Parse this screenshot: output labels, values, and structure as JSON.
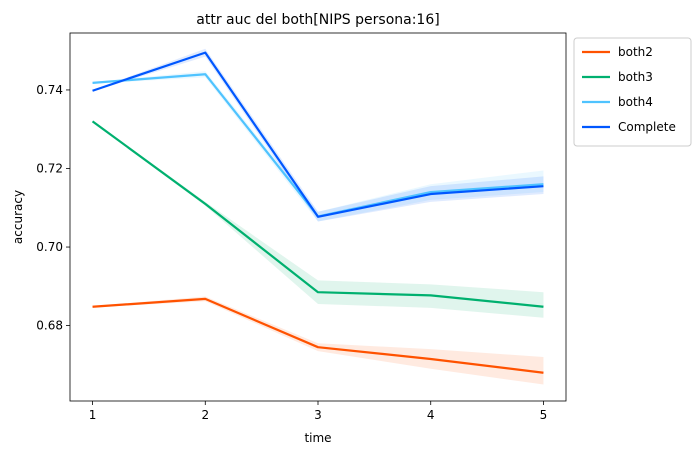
{
  "chart_data": {
    "type": "line",
    "title": "attr auc del both[NIPS persona:16]",
    "xlabel": "time",
    "ylabel": "accuracy",
    "x": [
      1,
      2,
      3,
      4,
      5
    ],
    "x_ticks": [
      "1",
      "2",
      "3",
      "4",
      "5"
    ],
    "xlim": [
      0.8,
      5.2
    ],
    "y_ticks": [
      "0.68",
      "0.70",
      "0.72",
      "0.74"
    ],
    "ylim": [
      0.6608,
      0.7545
    ],
    "grid": false,
    "legend_position": "outside-top-right",
    "series": [
      {
        "name": "both2",
        "color": "#ff5200",
        "values": [
          0.6848,
          0.6868,
          0.6745,
          0.6715,
          0.668
        ],
        "lower": [
          0.6846,
          0.6862,
          0.6735,
          0.669,
          0.665
        ],
        "upper": [
          0.685,
          0.6874,
          0.6755,
          0.674,
          0.672
        ]
      },
      {
        "name": "both3",
        "color": "#00b06f",
        "values": [
          0.732,
          0.711,
          0.6885,
          0.6877,
          0.6848
        ],
        "lower": [
          0.7318,
          0.7105,
          0.6855,
          0.6845,
          0.682
        ],
        "upper": [
          0.7322,
          0.7115,
          0.6915,
          0.6905,
          0.6885
        ]
      },
      {
        "name": "both4",
        "color": "#4fc3ff",
        "values": [
          0.7418,
          0.744,
          0.7078,
          0.714,
          0.716
        ],
        "lower": [
          0.7416,
          0.7432,
          0.7065,
          0.712,
          0.714
        ],
        "upper": [
          0.742,
          0.7448,
          0.709,
          0.716,
          0.7195
        ]
      },
      {
        "name": "Complete",
        "color": "#0057ff",
        "values": [
          0.7398,
          0.7495,
          0.7077,
          0.7135,
          0.7155
        ],
        "lower": [
          0.7396,
          0.7485,
          0.7065,
          0.7115,
          0.7135
        ],
        "upper": [
          0.74,
          0.7505,
          0.709,
          0.7155,
          0.718
        ]
      }
    ]
  }
}
